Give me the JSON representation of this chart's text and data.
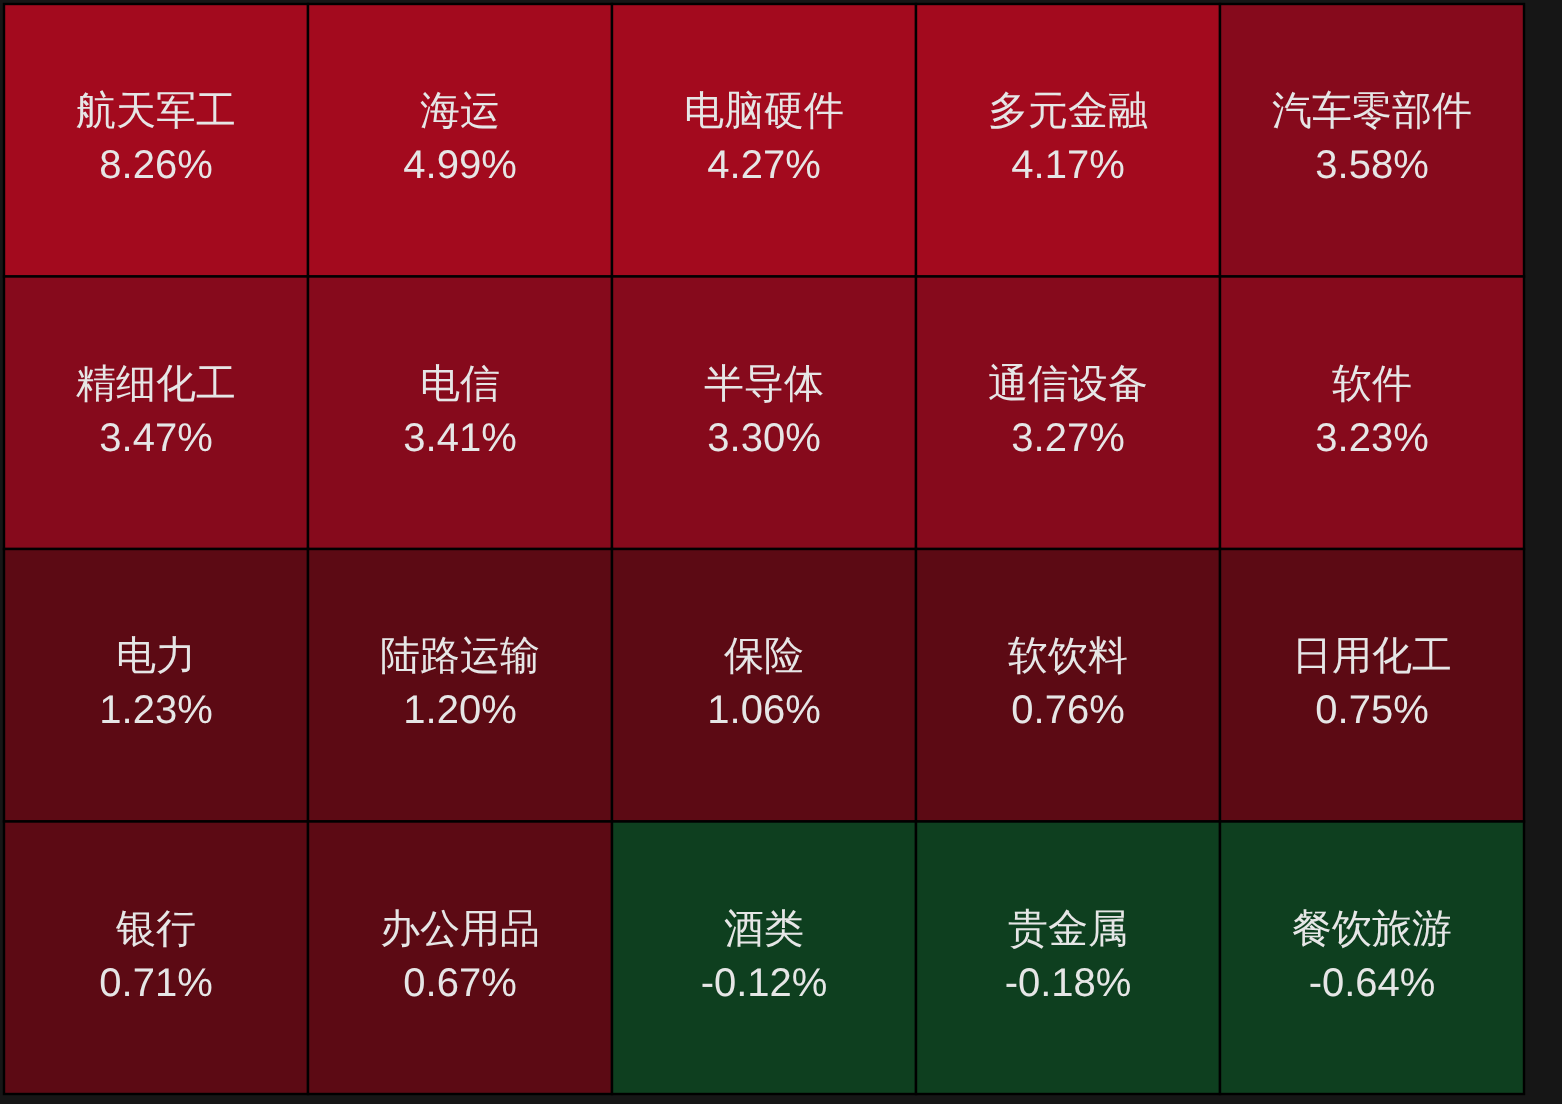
{
  "chart_data": {
    "type": "other",
    "categories": [
      "航天军工",
      "海运",
      "电脑硬件",
      "多元金融",
      "汽车零部件",
      "精细化工",
      "电信",
      "半导体",
      "通信设备",
      "软件",
      "电力",
      "陆路运输",
      "保险",
      "软饮料",
      "日用化工",
      "银行",
      "办公用品",
      "酒类",
      "贵金属",
      "餐饮旅游"
    ],
    "values": [
      8.26,
      4.99,
      4.27,
      4.17,
      3.58,
      3.47,
      3.41,
      3.3,
      3.27,
      3.23,
      1.23,
      1.2,
      1.06,
      0.76,
      0.75,
      0.71,
      0.67,
      -0.12,
      -0.18,
      -0.64
    ],
    "value_labels": [
      "8.26%",
      "4.99%",
      "4.27%",
      "4.17%",
      "3.58%",
      "3.47%",
      "3.41%",
      "3.30%",
      "3.27%",
      "3.23%",
      "1.23%",
      "1.20%",
      "1.06%",
      "0.76%",
      "0.75%",
      "0.71%",
      "0.67%",
      "-0.12%",
      "-0.18%",
      "-0.64%"
    ],
    "colors": [
      "#a30a1e",
      "#a30a1e",
      "#a30a1e",
      "#a30a1e",
      "#860a1c",
      "#860a1c",
      "#860a1c",
      "#860a1c",
      "#860a1c",
      "#860a1c",
      "#5c0a14",
      "#5c0a14",
      "#5c0a14",
      "#5c0a14",
      "#5c0a14",
      "#5c0a14",
      "#5c0a14",
      "#0e3f1f",
      "#0e3f1f",
      "#0e3f1f"
    ]
  }
}
